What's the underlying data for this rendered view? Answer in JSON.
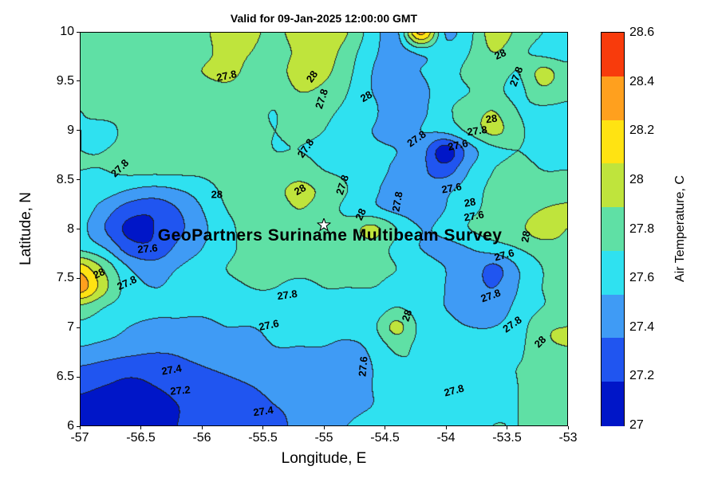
{
  "chart_data": {
    "type": "heatmap",
    "subtype": "filled-contour",
    "title": "Valid for 09-Jan-2025 12:00:00 GMT",
    "xlabel": "Longitude, E",
    "ylabel": "Latitude, N",
    "colorbar_label": "Air Temperature, C",
    "x_range": [
      -57,
      -53
    ],
    "y_range": [
      6,
      10
    ],
    "x_ticks": [
      "-57",
      "-56.5",
      "-56",
      "-55.5",
      "-55",
      "-54.5",
      "-54",
      "-53.5",
      "-53"
    ],
    "y_ticks": [
      "10",
      "9.5",
      "9",
      "8.5",
      "8",
      "7.5",
      "7",
      "6.5",
      "6"
    ],
    "colorbar_ticks": [
      "28.6",
      "28.4",
      "28.2",
      "28",
      "27.8",
      "27.6",
      "27.4",
      "27.2",
      "27"
    ],
    "colorbar_range": [
      27,
      28.6
    ],
    "level_min": 27,
    "levels_step": 0.2,
    "band_colors": [
      "#0016c8",
      "#2055f0",
      "#3f9bf5",
      "#2fe1f0",
      "#5fe0a5",
      "#bfe43c",
      "#ffe312",
      "#ffa01e",
      "#f83b0c"
    ],
    "contour_line_color": "#1f1f1f",
    "grid_note": "air temperature C on 21x21 grid; rows from lat 10 (top) to lat 6 (bottom), cols from lon -57 to lon -53",
    "grid": [
      [
        27.85,
        27.85,
        27.85,
        27.9,
        27.9,
        27.95,
        28.1,
        28.05,
        27.95,
        28.1,
        28.15,
        28.0,
        27.7,
        27.55,
        28.45,
        27.6,
        27.75,
        28.1,
        27.95,
        27.8,
        27.75
      ],
      [
        27.85,
        27.85,
        27.85,
        27.9,
        27.9,
        27.95,
        28.05,
        28.0,
        27.9,
        28.05,
        28.1,
        27.9,
        27.65,
        27.5,
        27.65,
        27.65,
        27.8,
        28.0,
        27.85,
        27.75,
        27.7
      ],
      [
        27.85,
        27.85,
        27.9,
        27.9,
        27.9,
        28.0,
        28.05,
        27.95,
        27.9,
        28.1,
        28.05,
        27.85,
        27.6,
        27.45,
        27.6,
        27.7,
        27.85,
        27.9,
        27.8,
        28.05,
        27.9
      ],
      [
        27.85,
        27.85,
        27.9,
        27.9,
        27.85,
        27.9,
        27.95,
        27.9,
        27.85,
        28.0,
        27.95,
        27.8,
        27.6,
        27.5,
        27.55,
        27.7,
        27.8,
        27.85,
        27.75,
        27.95,
        27.85
      ],
      [
        27.8,
        27.85,
        27.85,
        27.85,
        27.85,
        27.85,
        27.9,
        27.85,
        27.8,
        27.9,
        27.85,
        27.75,
        27.65,
        27.45,
        27.55,
        27.75,
        27.9,
        28.0,
        27.8,
        27.75,
        27.75
      ],
      [
        27.8,
        27.75,
        27.85,
        27.85,
        27.85,
        27.85,
        27.85,
        27.85,
        27.8,
        27.85,
        27.8,
        27.7,
        27.6,
        27.5,
        27.6,
        27.65,
        27.85,
        28.05,
        27.85,
        27.7,
        27.7
      ],
      [
        27.8,
        27.8,
        27.85,
        27.85,
        27.85,
        27.85,
        27.85,
        27.85,
        27.8,
        27.8,
        27.75,
        27.7,
        27.65,
        27.6,
        27.5,
        27.1,
        27.5,
        27.75,
        27.8,
        27.75,
        27.75
      ],
      [
        27.8,
        27.8,
        27.85,
        27.85,
        27.85,
        27.85,
        27.9,
        27.9,
        27.85,
        27.9,
        27.8,
        27.75,
        27.7,
        27.55,
        27.45,
        27.3,
        27.6,
        27.8,
        27.85,
        27.8,
        27.8
      ],
      [
        27.75,
        27.7,
        27.6,
        27.55,
        27.6,
        27.7,
        27.85,
        27.9,
        27.95,
        28.05,
        27.95,
        27.8,
        27.65,
        27.5,
        27.45,
        27.55,
        27.7,
        27.85,
        27.9,
        27.85,
        27.85
      ],
      [
        27.7,
        27.5,
        27.3,
        27.25,
        27.4,
        27.6,
        27.8,
        27.85,
        27.9,
        28.0,
        27.9,
        27.75,
        27.65,
        27.55,
        27.5,
        27.6,
        27.75,
        27.85,
        27.9,
        28.0,
        28.05
      ],
      [
        27.65,
        27.4,
        27.15,
        27.2,
        27.35,
        27.55,
        27.75,
        27.85,
        27.85,
        27.9,
        27.85,
        27.9,
        28.05,
        27.8,
        27.6,
        27.65,
        27.8,
        27.9,
        27.95,
        28.1,
        28.0
      ],
      [
        27.75,
        27.6,
        27.3,
        27.25,
        27.45,
        27.6,
        27.75,
        27.85,
        27.85,
        27.85,
        27.85,
        27.85,
        27.9,
        27.75,
        27.6,
        27.55,
        27.6,
        27.7,
        27.8,
        27.9,
        27.95
      ],
      [
        28.3,
        27.95,
        27.6,
        27.5,
        27.6,
        27.7,
        27.8,
        27.85,
        27.85,
        27.85,
        27.85,
        27.85,
        27.85,
        27.8,
        27.7,
        27.6,
        27.55,
        27.35,
        27.6,
        27.8,
        27.9
      ],
      [
        28.5,
        28.05,
        27.7,
        27.6,
        27.65,
        27.7,
        27.75,
        27.8,
        27.8,
        27.75,
        27.8,
        27.8,
        27.8,
        27.75,
        27.7,
        27.6,
        27.5,
        27.4,
        27.6,
        27.8,
        27.85
      ],
      [
        27.95,
        27.8,
        27.7,
        27.65,
        27.65,
        27.65,
        27.7,
        27.75,
        27.75,
        27.7,
        27.75,
        27.75,
        27.7,
        27.8,
        27.7,
        27.6,
        27.55,
        27.5,
        27.65,
        27.8,
        27.85
      ],
      [
        27.75,
        27.7,
        27.6,
        27.55,
        27.55,
        27.55,
        27.6,
        27.6,
        27.65,
        27.65,
        27.7,
        27.7,
        27.75,
        28.05,
        27.75,
        27.65,
        27.6,
        27.6,
        27.7,
        27.95,
        28.0
      ],
      [
        27.6,
        27.55,
        27.5,
        27.45,
        27.45,
        27.5,
        27.55,
        27.55,
        27.6,
        27.6,
        27.6,
        27.55,
        27.65,
        27.85,
        27.75,
        27.7,
        27.7,
        27.7,
        27.75,
        27.95,
        28.0
      ],
      [
        27.4,
        27.35,
        27.3,
        27.3,
        27.35,
        27.4,
        27.45,
        27.5,
        27.55,
        27.55,
        27.5,
        27.45,
        27.6,
        27.75,
        27.8,
        27.75,
        27.7,
        27.75,
        27.8,
        27.85,
        27.85
      ],
      [
        27.25,
        27.2,
        27.15,
        27.2,
        27.25,
        27.3,
        27.35,
        27.4,
        27.45,
        27.5,
        27.45,
        27.5,
        27.6,
        27.7,
        27.75,
        27.7,
        27.65,
        27.75,
        27.8,
        27.9,
        27.95
      ],
      [
        27.15,
        27.1,
        27.1,
        27.15,
        27.2,
        27.25,
        27.3,
        27.35,
        27.4,
        27.45,
        27.5,
        27.55,
        27.6,
        27.65,
        27.7,
        27.7,
        27.7,
        27.75,
        27.8,
        27.85,
        27.85
      ],
      [
        27.1,
        27.05,
        27.1,
        27.15,
        27.2,
        27.25,
        27.3,
        27.3,
        27.35,
        27.45,
        27.55,
        27.6,
        27.65,
        27.7,
        27.7,
        27.75,
        27.75,
        27.8,
        27.8,
        27.85,
        27.85
      ]
    ],
    "contour_labels": [
      {
        "text": "27.8",
        "lon": -55.8,
        "lat": 9.56,
        "rot": -12
      },
      {
        "text": "28",
        "lon": -55.1,
        "lat": 9.55,
        "rot": -55
      },
      {
        "text": "27.8",
        "lon": -55.02,
        "lat": 9.33,
        "rot": -72
      },
      {
        "text": "28",
        "lon": -54.65,
        "lat": 9.35,
        "rot": -30
      },
      {
        "text": "28",
        "lon": -53.55,
        "lat": 9.78,
        "rot": -25
      },
      {
        "text": "27.8",
        "lon": -53.42,
        "lat": 9.55,
        "rot": -70
      },
      {
        "text": "28",
        "lon": -53.62,
        "lat": 9.12,
        "rot": -8
      },
      {
        "text": "27.8",
        "lon": -53.74,
        "lat": 9.0,
        "rot": -8
      },
      {
        "text": "27.8",
        "lon": -54.24,
        "lat": 8.92,
        "rot": -35
      },
      {
        "text": "27.6",
        "lon": -53.9,
        "lat": 8.86,
        "rot": -12
      },
      {
        "text": "27.8",
        "lon": -55.15,
        "lat": 8.82,
        "rot": -55
      },
      {
        "text": "27.8",
        "lon": -56.68,
        "lat": 8.62,
        "rot": -45
      },
      {
        "text": "28",
        "lon": -55.88,
        "lat": 8.35,
        "rot": 0
      },
      {
        "text": "28",
        "lon": -55.2,
        "lat": 8.4,
        "rot": -30
      },
      {
        "text": "27.8",
        "lon": -54.85,
        "lat": 8.45,
        "rot": -72
      },
      {
        "text": "27.8",
        "lon": -54.4,
        "lat": 8.28,
        "rot": -80
      },
      {
        "text": "27.6",
        "lon": -53.95,
        "lat": 8.42,
        "rot": -10
      },
      {
        "text": "28",
        "lon": -53.8,
        "lat": 8.27,
        "rot": -10
      },
      {
        "text": "27.6",
        "lon": -53.77,
        "lat": 8.13,
        "rot": -10
      },
      {
        "text": "28",
        "lon": -54.7,
        "lat": 8.15,
        "rot": -65
      },
      {
        "text": "28",
        "lon": -53.34,
        "lat": 7.92,
        "rot": -80
      },
      {
        "text": "27.6",
        "lon": -56.45,
        "lat": 7.8,
        "rot": -5
      },
      {
        "text": "27.6",
        "lon": -53.52,
        "lat": 7.74,
        "rot": -15
      },
      {
        "text": "28",
        "lon": -56.85,
        "lat": 7.55,
        "rot": -25
      },
      {
        "text": "27.8",
        "lon": -56.62,
        "lat": 7.45,
        "rot": -25
      },
      {
        "text": "27.8",
        "lon": -55.3,
        "lat": 7.33,
        "rot": -8
      },
      {
        "text": "27.6",
        "lon": -55.45,
        "lat": 7.02,
        "rot": -12
      },
      {
        "text": "28",
        "lon": -54.32,
        "lat": 7.12,
        "rot": -72
      },
      {
        "text": "27.8",
        "lon": -53.63,
        "lat": 7.32,
        "rot": -20
      },
      {
        "text": "27.8",
        "lon": -53.45,
        "lat": 7.03,
        "rot": -35
      },
      {
        "text": "28",
        "lon": -53.22,
        "lat": 6.85,
        "rot": -45
      },
      {
        "text": "27.6",
        "lon": -54.68,
        "lat": 6.6,
        "rot": -85
      },
      {
        "text": "27.4",
        "lon": -56.25,
        "lat": 6.57,
        "rot": -10
      },
      {
        "text": "27.2",
        "lon": -56.18,
        "lat": 6.36,
        "rot": -5
      },
      {
        "text": "27.8",
        "lon": -53.93,
        "lat": 6.36,
        "rot": -15
      },
      {
        "text": "27.4",
        "lon": -55.5,
        "lat": 6.15,
        "rot": -8
      }
    ],
    "annotation": {
      "text": "GeoPartners Suriname Multibeam Survey",
      "lon": -54.95,
      "lat": 7.93
    },
    "star": {
      "lon": -55.0,
      "lat": 8.02
    },
    "legend_position": "right-colorbar",
    "grid_lines": false
  }
}
